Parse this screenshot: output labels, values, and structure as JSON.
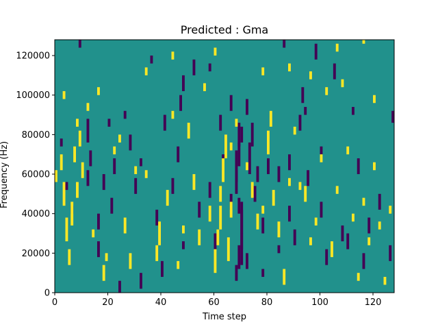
{
  "chart_data": {
    "type": "heatmap",
    "title": "Predicted : Gma",
    "xlabel": "Time step",
    "ylabel": "Frequency (Hz)",
    "xlim": [
      0,
      128
    ],
    "ylim": [
      0,
      128000
    ],
    "xticks": [
      0,
      20,
      40,
      60,
      80,
      100,
      120
    ],
    "xtick_labels": [
      "0",
      "20",
      "40",
      "60",
      "80",
      "100",
      "120"
    ],
    "yticks": [
      0,
      20000,
      40000,
      60000,
      80000,
      100000,
      120000
    ],
    "ytick_labels": [
      "0",
      "20000",
      "40000",
      "60000",
      "80000",
      "100000",
      "120000"
    ],
    "grid": false,
    "colormap": {
      "low": "#440154",
      "mid": "#21918c",
      "high": "#fde725"
    },
    "background_value": 0,
    "cell_height": 2000,
    "value_levels": [
      -1,
      0,
      1
    ],
    "cells_low": [
      [
        24,
        0,
        3
      ],
      [
        68,
        6000,
        4
      ],
      [
        69,
        12000,
        6
      ],
      [
        70,
        14000,
        8
      ],
      [
        70,
        22000,
        10
      ],
      [
        70,
        30000,
        8
      ],
      [
        69,
        40000,
        4
      ],
      [
        68,
        50000,
        6
      ],
      [
        68,
        56000,
        8
      ],
      [
        69,
        64000,
        6
      ],
      [
        69,
        74000,
        6
      ],
      [
        70,
        76000,
        4
      ],
      [
        73,
        68000,
        4
      ],
      [
        74,
        74000,
        6
      ],
      [
        75,
        46000,
        4
      ],
      [
        76,
        56000,
        4
      ],
      [
        72,
        12000,
        4
      ],
      [
        78,
        8000,
        2
      ],
      [
        12,
        76000,
        6
      ],
      [
        12,
        54000,
        4
      ],
      [
        13,
        64000,
        4
      ],
      [
        16,
        18000,
        4
      ],
      [
        16,
        32000,
        4
      ],
      [
        18,
        52000,
        4
      ],
      [
        21,
        40000,
        4
      ],
      [
        22,
        60000,
        4
      ],
      [
        28,
        72000,
        4
      ],
      [
        30,
        50000,
        4
      ],
      [
        32,
        2000,
        4
      ],
      [
        38,
        34000,
        4
      ],
      [
        40,
        8000,
        4
      ],
      [
        41,
        82000,
        4
      ],
      [
        44,
        50000,
        4
      ],
      [
        46,
        66000,
        4
      ],
      [
        47,
        92000,
        4
      ],
      [
        48,
        102000,
        4
      ],
      [
        52,
        110000,
        4
      ],
      [
        54,
        38000,
        4
      ],
      [
        58,
        48000,
        4
      ],
      [
        60,
        22000,
        4
      ],
      [
        62,
        82000,
        4
      ],
      [
        63,
        62000,
        4
      ],
      [
        66,
        42000,
        4
      ],
      [
        66,
        92000,
        4
      ],
      [
        72,
        90000,
        4
      ],
      [
        73,
        60000,
        4
      ],
      [
        78,
        30000,
        4
      ],
      [
        80,
        60000,
        4
      ],
      [
        84,
        56000,
        4
      ],
      [
        88,
        62000,
        4
      ],
      [
        88,
        36000,
        4
      ],
      [
        90,
        24000,
        4
      ],
      [
        92,
        82000,
        4
      ],
      [
        93,
        96000,
        4
      ],
      [
        95,
        54000,
        4
      ],
      [
        98,
        118000,
        4
      ],
      [
        100,
        38000,
        4
      ],
      [
        102,
        14000,
        4
      ],
      [
        105,
        108000,
        4
      ],
      [
        108,
        26000,
        4
      ],
      [
        110,
        22000,
        4
      ],
      [
        114,
        60000,
        4
      ],
      [
        116,
        12000,
        4
      ],
      [
        118,
        30000,
        4
      ],
      [
        122,
        42000,
        4
      ],
      [
        126,
        16000,
        4
      ],
      [
        127,
        86000,
        3
      ],
      [
        94,
        90000,
        2
      ],
      [
        58,
        112000,
        2
      ],
      [
        36,
        116000,
        2
      ],
      [
        9,
        124000,
        2
      ],
      [
        86,
        124000,
        2
      ],
      [
        32,
        64000,
        2
      ],
      [
        48,
        22000,
        2
      ],
      [
        20,
        84000,
        2
      ],
      [
        2,
        74000,
        2
      ],
      [
        4,
        52000,
        2
      ],
      [
        6,
        40000,
        2
      ],
      [
        26,
        88000,
        2
      ],
      [
        84,
        20000,
        2
      ],
      [
        100,
        70000,
        2
      ],
      [
        112,
        90000,
        2
      ]
    ],
    "cells_high": [
      [
        0,
        56000,
        3
      ],
      [
        2,
        62000,
        4
      ],
      [
        3,
        44000,
        6
      ],
      [
        4,
        26000,
        6
      ],
      [
        5,
        14000,
        4
      ],
      [
        6,
        34000,
        6
      ],
      [
        7,
        66000,
        4
      ],
      [
        8,
        48000,
        4
      ],
      [
        9,
        74000,
        4
      ],
      [
        10,
        58000,
        4
      ],
      [
        18,
        6000,
        4
      ],
      [
        19,
        16000,
        2
      ],
      [
        22,
        70000,
        2
      ],
      [
        26,
        30000,
        4
      ],
      [
        28,
        12000,
        4
      ],
      [
        30,
        60000,
        2
      ],
      [
        34,
        58000,
        2
      ],
      [
        38,
        16000,
        4
      ],
      [
        39,
        24000,
        6
      ],
      [
        42,
        44000,
        4
      ],
      [
        44,
        88000,
        2
      ],
      [
        46,
        12000,
        2
      ],
      [
        48,
        30000,
        2
      ],
      [
        50,
        78000,
        4
      ],
      [
        52,
        52000,
        4
      ],
      [
        54,
        24000,
        4
      ],
      [
        56,
        102000,
        2
      ],
      [
        58,
        36000,
        4
      ],
      [
        60,
        10000,
        6
      ],
      [
        61,
        24000,
        4
      ],
      [
        62,
        32000,
        6
      ],
      [
        62,
        46000,
        4
      ],
      [
        63,
        56000,
        6
      ],
      [
        64,
        68000,
        6
      ],
      [
        65,
        16000,
        6
      ],
      [
        66,
        38000,
        4
      ],
      [
        66,
        72000,
        2
      ],
      [
        68,
        84000,
        2
      ],
      [
        72,
        62000,
        2
      ],
      [
        74,
        48000,
        4
      ],
      [
        76,
        32000,
        4
      ],
      [
        78,
        40000,
        2
      ],
      [
        80,
        70000,
        6
      ],
      [
        81,
        84000,
        4
      ],
      [
        82,
        44000,
        4
      ],
      [
        84,
        28000,
        4
      ],
      [
        86,
        4000,
        4
      ],
      [
        88,
        54000,
        2
      ],
      [
        90,
        80000,
        2
      ],
      [
        92,
        52000,
        2
      ],
      [
        94,
        46000,
        4
      ],
      [
        96,
        24000,
        2
      ],
      [
        98,
        34000,
        2
      ],
      [
        100,
        66000,
        2
      ],
      [
        102,
        100000,
        2
      ],
      [
        104,
        18000,
        4
      ],
      [
        106,
        50000,
        2
      ],
      [
        108,
        104000,
        2
      ],
      [
        110,
        70000,
        2
      ],
      [
        112,
        36000,
        2
      ],
      [
        114,
        6000,
        2
      ],
      [
        116,
        44000,
        2
      ],
      [
        118,
        24000,
        2
      ],
      [
        120,
        62000,
        2
      ],
      [
        122,
        32000,
        2
      ],
      [
        124,
        4000,
        2
      ],
      [
        126,
        40000,
        2
      ],
      [
        16,
        100000,
        2
      ],
      [
        34,
        110000,
        2
      ],
      [
        44,
        118000,
        2
      ],
      [
        60,
        120000,
        2
      ],
      [
        78,
        110000,
        2
      ],
      [
        88,
        112000,
        2
      ],
      [
        96,
        108000,
        2
      ],
      [
        106,
        122000,
        2
      ],
      [
        116,
        126000,
        2
      ],
      [
        120,
        96000,
        2
      ],
      [
        14,
        28000,
        2
      ],
      [
        24,
        76000,
        2
      ],
      [
        12,
        92000,
        2
      ],
      [
        8,
        84000,
        2
      ],
      [
        3,
        98000,
        2
      ]
    ]
  }
}
